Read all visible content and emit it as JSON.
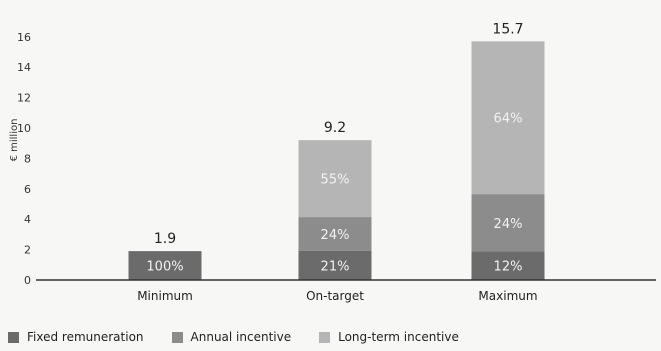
{
  "chart_data": {
    "type": "bar",
    "stacked": true,
    "ylabel": "€ million",
    "ylim": [
      0,
      16
    ],
    "yticks": [
      0,
      2,
      4,
      6,
      8,
      10,
      12,
      14,
      16
    ],
    "grid": false,
    "legend_position": "bottom",
    "categories": [
      "Minimum",
      "On-target",
      "Maximum"
    ],
    "totals": [
      "1.9",
      "9.2",
      "15.7"
    ],
    "series": [
      {
        "name": "Fixed remuneration",
        "color": "#6b6b6b",
        "values": [
          1.9,
          1.93,
          1.88
        ],
        "labels": [
          "100%",
          "21%",
          "12%"
        ]
      },
      {
        "name": "Annual incentive",
        "color": "#8c8c8c",
        "values": [
          0,
          2.21,
          3.77
        ],
        "labels": [
          "",
          "24%",
          "24%"
        ]
      },
      {
        "name": "Long-term incentive",
        "color": "#b5b5b5",
        "values": [
          0,
          5.06,
          10.05
        ],
        "labels": [
          "",
          "55%",
          "64%"
        ]
      }
    ]
  }
}
